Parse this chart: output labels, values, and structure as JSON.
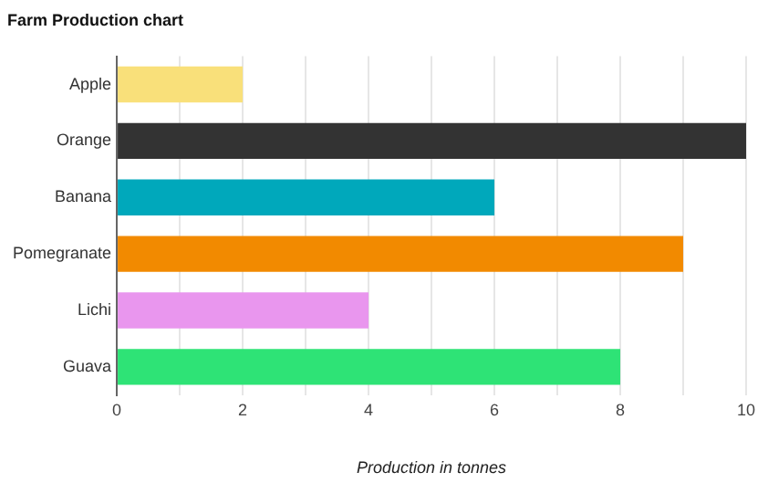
{
  "chart_data": {
    "type": "bar",
    "orientation": "horizontal",
    "title": "Farm Production chart",
    "xlabel": "Production in tonnes",
    "categories": [
      "Apple",
      "Orange",
      "Banana",
      "Pomegranate",
      "Lichi",
      "Guava"
    ],
    "values": [
      2,
      10,
      6,
      9,
      4,
      8
    ],
    "colors": [
      "#f9e07a",
      "#333333",
      "#00a8bb",
      "#f28a00",
      "#e996ee",
      "#2ee376"
    ],
    "xlim": [
      0,
      10
    ],
    "xticks": [
      0,
      {
        "value": 1,
        "label": null
      },
      2,
      {
        "value": 3,
        "label": null
      },
      4,
      {
        "value": 5,
        "label": null
      },
      6,
      {
        "value": 7,
        "label": null
      },
      8,
      {
        "value": 9,
        "label": null
      },
      10
    ],
    "grid": "x",
    "legend": false
  }
}
